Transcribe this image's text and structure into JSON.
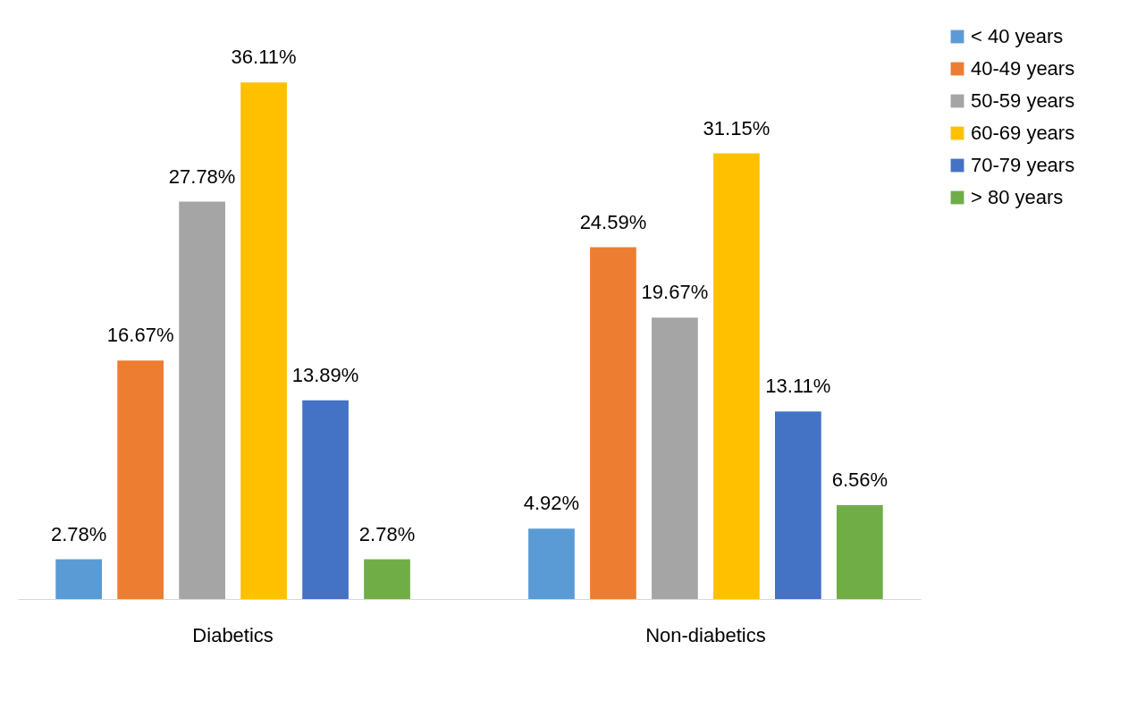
{
  "chart_data": {
    "type": "bar",
    "categories": [
      "Diabetics",
      "Non-diabetics"
    ],
    "series": [
      {
        "name": "< 40 years",
        "color": "#5b9bd5",
        "values": [
          2.78,
          4.92
        ],
        "value_labels": [
          "2.78%",
          "4.92%"
        ]
      },
      {
        "name": "40-49 years",
        "color": "#ed7d31",
        "values": [
          16.67,
          24.59
        ],
        "value_labels": [
          "16.67%",
          "24.59%"
        ]
      },
      {
        "name": "50-59 years",
        "color": "#a5a5a5",
        "values": [
          27.78,
          19.67
        ],
        "value_labels": [
          "27.78%",
          "19.67%"
        ]
      },
      {
        "name": "60-69 years",
        "color": "#ffc000",
        "values": [
          36.11,
          31.15
        ],
        "value_labels": [
          "36.11%",
          "31.15%"
        ]
      },
      {
        "name": "70-79 years",
        "color": "#4472c4",
        "values": [
          13.89,
          13.11
        ],
        "value_labels": [
          "13.89%",
          "13.11%"
        ]
      },
      {
        "name": "> 80 years",
        "color": "#70ad47",
        "values": [
          2.78,
          6.56
        ],
        "value_labels": [
          "2.78%",
          "6.56%"
        ]
      }
    ],
    "legend": "right",
    "grid": false
  }
}
